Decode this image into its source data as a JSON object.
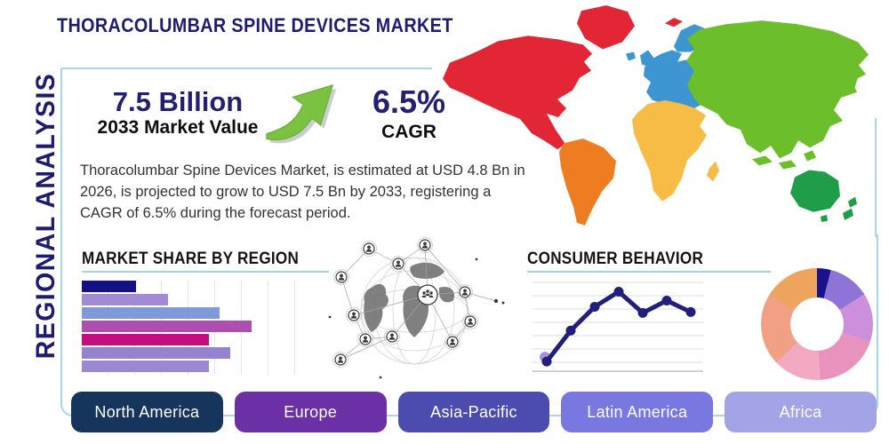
{
  "header": {
    "title": "THORACOLUMBAR SPINE DEVICES MARKET",
    "side_label": "REGIONAL ANALYSIS"
  },
  "stats": {
    "market_value": "7.5 Billion",
    "market_value_caption": "2033 Market Value",
    "cagr_value": "6.5%",
    "cagr_caption": "CAGR",
    "description": "Thoracolumbar Spine Devices Market, is estimated at USD 4.8 Bn in 2026, is projected to grow to USD 7.5 Bn by 2033, registering a CAGR of 6.5% during the forecast period.",
    "growth_arrow_color": "#7bc142",
    "navy_accent": "#242071"
  },
  "chart_data": [
    {
      "type": "bar",
      "title": "MARKET SHARE BY REGION",
      "orientation": "horizontal",
      "categories": [
        "",
        "",
        "",
        "",
        "",
        "",
        ""
      ],
      "values": [
        25,
        40,
        64,
        79,
        59,
        69,
        59
      ],
      "xlim": [
        0,
        100
      ],
      "grid": true,
      "axis_labels_visible": false,
      "bar_colors": [
        "#141187",
        "#a18bd4",
        "#7e9ad8",
        "#ad4fae",
        "#c40d7e",
        "#9583cf",
        "#9d87d2"
      ]
    },
    {
      "type": "line",
      "title": "CONSUMER BEHAVIOR",
      "x": [
        1,
        2,
        3,
        4,
        5,
        6,
        7
      ],
      "values": [
        1.1,
        4.6,
        7.3,
        9.0,
        6.6,
        8.0,
        6.7
      ],
      "ylim": [
        0,
        10
      ],
      "grid": true,
      "axis_labels_visible": false,
      "line_color": "#221f7a",
      "marker_color": "#221f7a",
      "first_marker_halo": "#a98fd8"
    },
    {
      "type": "donut",
      "title": "",
      "values": [
        4,
        12,
        14,
        19,
        14,
        21,
        16
      ],
      "colors": [
        "#1a1389",
        "#8d74d6",
        "#cb8fdb",
        "#e793bd",
        "#f4a9c2",
        "#f2a083",
        "#eda45c"
      ],
      "labels_visible": false
    }
  ],
  "map": {
    "name": "world-map",
    "regions": [
      {
        "id": "north-america",
        "color": "#e32636"
      },
      {
        "id": "greenland",
        "color": "#e32636"
      },
      {
        "id": "south-america",
        "color": "#ee7c21"
      },
      {
        "id": "europe",
        "color": "#3d96d2"
      },
      {
        "id": "africa",
        "color": "#f6bc45"
      },
      {
        "id": "asia",
        "color": "#6cbf2a"
      },
      {
        "id": "australia",
        "color": "#1f9d49"
      }
    ]
  },
  "region_buttons": [
    {
      "label": "North America",
      "color": "#16355c"
    },
    {
      "label": "Europe",
      "color": "#6b2fa6"
    },
    {
      "label": "Asia-Pacific",
      "color": "#4c4cb0"
    },
    {
      "label": "Latin America",
      "color": "#7878e0"
    },
    {
      "label": "Africa",
      "color": "#a3a3e8"
    }
  ],
  "theme": {
    "box_border_color": "#a9d6e9",
    "underline_color": "#9fd4e6"
  }
}
